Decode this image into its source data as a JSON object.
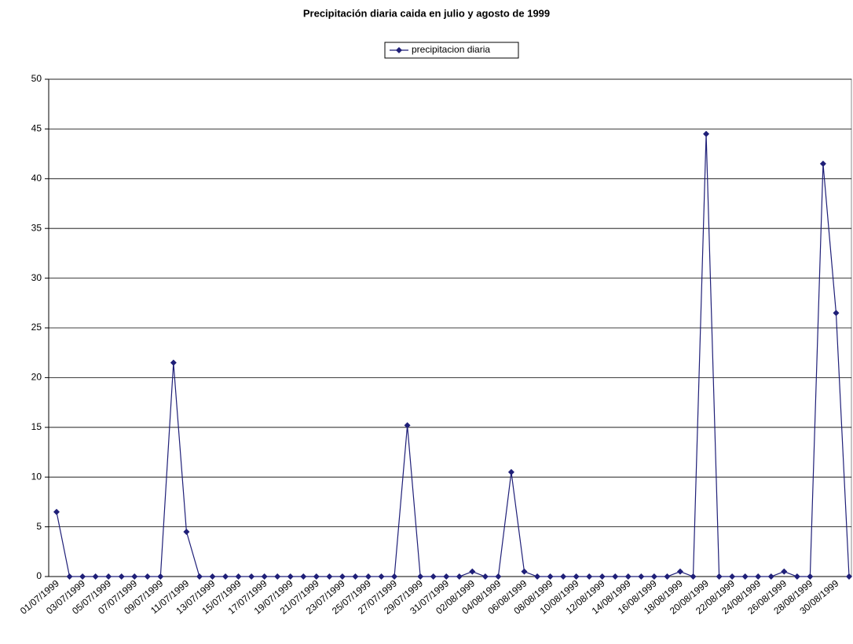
{
  "chart_data": {
    "type": "line",
    "title": "Precipitación diaria caida en julio y agosto de 1999",
    "categories": [
      "01/07/1999",
      null,
      "03/07/1999",
      null,
      "05/07/1999",
      null,
      "07/07/1999",
      null,
      "09/07/1999",
      null,
      "11/07/1999",
      null,
      "13/07/1999",
      null,
      "15/07/1999",
      null,
      "17/07/1999",
      null,
      "19/07/1999",
      null,
      "21/07/1999",
      null,
      "23/07/1999",
      null,
      "25/07/1999",
      null,
      "27/07/1999",
      null,
      "29/07/1999",
      null,
      "31/07/1999",
      null,
      "02/08/1999",
      null,
      "04/08/1999",
      null,
      "06/08/1999",
      null,
      "08/08/1999",
      null,
      "10/08/1999",
      null,
      "12/08/1999",
      null,
      "14/08/1999",
      null,
      "16/08/1999",
      null,
      "18/08/1999",
      null,
      "20/08/1999",
      null,
      "22/08/1999",
      null,
      "24/08/1999",
      null,
      "26/08/1999",
      null,
      "28/08/1999",
      null,
      "30/08/1999",
      null
    ],
    "series": [
      {
        "name": "precipitacion diaria",
        "color": "#1f1f78",
        "values": [
          6.5,
          0,
          0,
          0,
          0,
          0,
          0,
          0,
          0,
          21.5,
          4.5,
          0,
          0,
          0,
          0,
          0,
          0,
          0,
          0,
          0,
          0,
          0,
          0,
          0,
          0,
          0,
          0,
          15.2,
          0,
          0,
          0,
          0,
          0.5,
          0,
          0,
          10.5,
          0.5,
          0,
          0,
          0,
          0,
          0,
          0,
          0,
          0,
          0,
          0,
          0,
          0.5,
          0,
          44.5,
          0,
          0,
          0,
          0,
          0,
          0.5,
          0,
          0,
          41.5,
          26.5,
          0
        ]
      }
    ],
    "ylim": [
      0,
      50
    ],
    "yticks": [
      0,
      5,
      10,
      15,
      20,
      25,
      30,
      35,
      40,
      45,
      50
    ],
    "grid": true,
    "legend": "top"
  }
}
